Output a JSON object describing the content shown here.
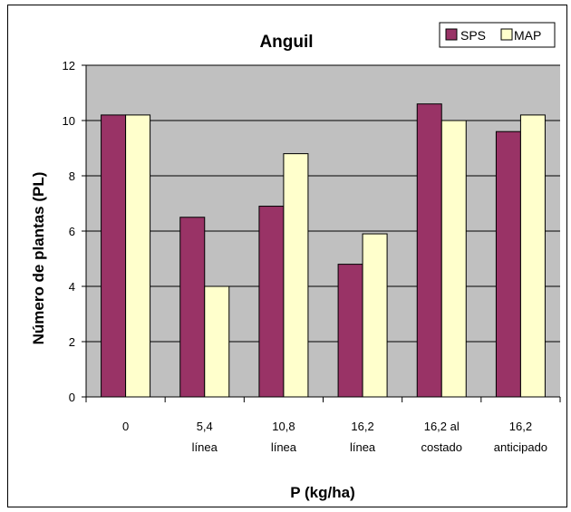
{
  "chart_data": {
    "type": "bar",
    "title": "Anguil",
    "xlabel": "P (kg/ha)",
    "ylabel": "Número de plantas (PL)",
    "ylim": [
      0,
      12
    ],
    "yticks": [
      0,
      2,
      4,
      6,
      8,
      10,
      12
    ],
    "grid": true,
    "legend_position": "top-right",
    "categories": [
      [
        "0"
      ],
      [
        "5,4",
        "línea"
      ],
      [
        "10,8",
        "línea"
      ],
      [
        "16,2",
        "línea"
      ],
      [
        "16,2 al",
        "costado"
      ],
      [
        "16,2",
        "anticipado"
      ]
    ],
    "series": [
      {
        "name": "SPS",
        "color": "#993366",
        "values": [
          10.2,
          6.5,
          6.9,
          4.8,
          10.6,
          9.6
        ]
      },
      {
        "name": "MAP",
        "color": "#FFFFCC",
        "values": [
          10.2,
          4.0,
          8.8,
          5.9,
          10.0,
          10.2
        ]
      }
    ],
    "plot_background": "#C0C0C0"
  }
}
